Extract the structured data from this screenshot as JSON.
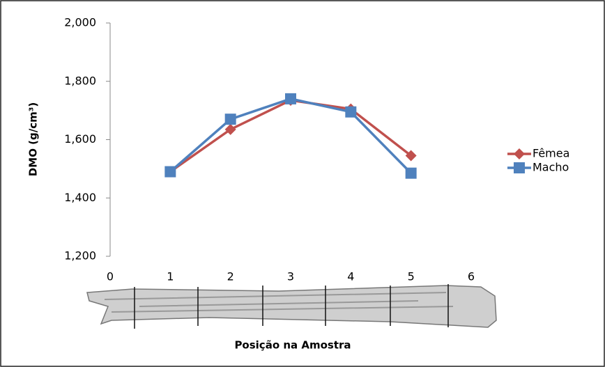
{
  "chart_data": {
    "type": "line",
    "ylabel": "DMO (g/cm³)",
    "xlabel": "Posição na Amostra",
    "x": [
      1,
      2,
      3,
      4,
      5
    ],
    "series": [
      {
        "name": "Fêmea",
        "color": "#c0504d",
        "marker": "diamond",
        "values": [
          1.49,
          1.635,
          1.735,
          1.705,
          1.545
        ]
      },
      {
        "name": "Macho",
        "color": "#4f81bd",
        "marker": "square",
        "values": [
          1.49,
          1.67,
          1.74,
          1.695,
          1.485
        ]
      }
    ],
    "xlim": [
      0,
      6
    ],
    "xticks": [
      0,
      1,
      2,
      3,
      4,
      5,
      6
    ],
    "ylim": [
      1.2,
      2.0
    ],
    "yticks": [
      {
        "value": 1.2,
        "label": "1,200"
      },
      {
        "value": 1.4,
        "label": "1,400"
      },
      {
        "value": 1.6,
        "label": "1,600"
      },
      {
        "value": 1.8,
        "label": "1,800"
      },
      {
        "value": 2.0,
        "label": "2,000"
      }
    ],
    "grid": false,
    "legend": "right"
  }
}
